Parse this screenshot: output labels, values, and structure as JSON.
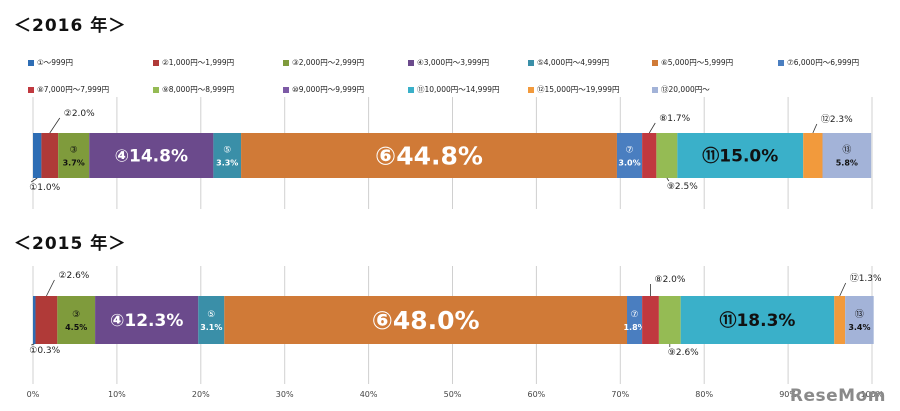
{
  "chart_data": [
    {
      "type": "bar",
      "orientation": "horizontal-stacked-100",
      "title": "＜2016 年＞",
      "categories": [
        "2016"
      ],
      "series": [
        {
          "index_label": "①",
          "name": "①～999円",
          "value": 1.0,
          "label": "①1.0%",
          "color": "#2e6db4"
        },
        {
          "index_label": "②",
          "name": "②1,000円～1,999円",
          "value": 2.0,
          "label": "②2.0%",
          "color": "#b03a38"
        },
        {
          "index_label": "③",
          "name": "③2,000円～2,999円",
          "value": 3.7,
          "label": "3.7%",
          "color": "#7f9b3c"
        },
        {
          "index_label": "④",
          "name": "④3,000円～3,999円",
          "value": 14.8,
          "label": "④14.8%",
          "color": "#6b4a8c"
        },
        {
          "index_label": "⑤",
          "name": "⑤4,000円～4,999円",
          "value": 3.3,
          "label": "3.3%",
          "color": "#3a8fa8"
        },
        {
          "index_label": "⑥",
          "name": "⑥5,000円～5,999円",
          "value": 44.8,
          "label": "⑥44.8%",
          "color": "#d07a37"
        },
        {
          "index_label": "⑦",
          "name": "⑦6,000円～6,999円",
          "value": 3.0,
          "label": "3.0%",
          "color": "#4a7ec0"
        },
        {
          "index_label": "⑧",
          "name": "⑧7,000円～7,999円",
          "value": 1.7,
          "label": "⑧1.7%",
          "color": "#c0393f"
        },
        {
          "index_label": "⑨",
          "name": "⑨8,000円～8,999円",
          "value": 2.5,
          "label": "⑨2.5%",
          "color": "#95bb54"
        },
        {
          "index_label": "⑩",
          "name": "⑩9,000円～9,999円",
          "value": 0.0,
          "label": "",
          "color": "#7d5aa6"
        },
        {
          "index_label": "⑪",
          "name": "⑪10,000円～14,999円",
          "value": 15.0,
          "label": "⑪15.0%",
          "color": "#3ab0c9"
        },
        {
          "index_label": "⑫",
          "name": "⑫15,000円～19,999円",
          "value": 2.3,
          "label": "⑫2.3%",
          "color": "#f29a3c"
        },
        {
          "index_label": "⑬",
          "name": "⑬20,000円～",
          "value": 5.8,
          "label": "5.8%",
          "color": "#a3b3d8"
        }
      ]
    },
    {
      "type": "bar",
      "orientation": "horizontal-stacked-100",
      "title": "＜2015 年＞",
      "categories": [
        "2015"
      ],
      "series": [
        {
          "index_label": "①",
          "name": "①～999円",
          "value": 0.3,
          "label": "①0.3%",
          "color": "#2e6db4"
        },
        {
          "index_label": "②",
          "name": "②1,000円～1,999円",
          "value": 2.6,
          "label": "②2.6%",
          "color": "#b03a38"
        },
        {
          "index_label": "③",
          "name": "③2,000円～2,999円",
          "value": 4.5,
          "label": "4.5%",
          "color": "#7f9b3c"
        },
        {
          "index_label": "④",
          "name": "④3,000円～3,999円",
          "value": 12.3,
          "label": "④12.3%",
          "color": "#6b4a8c"
        },
        {
          "index_label": "⑤",
          "name": "⑤4,000円～4,999円",
          "value": 3.1,
          "label": "3.1%",
          "color": "#3a8fa8"
        },
        {
          "index_label": "⑥",
          "name": "⑥5,000円～5,999円",
          "value": 48.0,
          "label": "⑥48.0%",
          "color": "#d07a37"
        },
        {
          "index_label": "⑦",
          "name": "⑦6,000円～6,999円",
          "value": 1.8,
          "label": "1.8%",
          "color": "#4a7ec0"
        },
        {
          "index_label": "⑧",
          "name": "⑧7,000円～7,999円",
          "value": 2.0,
          "label": "⑧2.0%",
          "color": "#c0393f"
        },
        {
          "index_label": "⑨",
          "name": "⑨8,000円～8,999円",
          "value": 2.6,
          "label": "⑨2.6%",
          "color": "#95bb54"
        },
        {
          "index_label": "⑩",
          "name": "⑩9,000円～9,999円",
          "value": 0.0,
          "label": "",
          "color": "#7d5aa6"
        },
        {
          "index_label": "⑪",
          "name": "⑪10,000円～14,999円",
          "value": 18.3,
          "label": "⑪18.3%",
          "color": "#3ab0c9"
        },
        {
          "index_label": "⑫",
          "name": "⑫15,000円～19,999円",
          "value": 1.3,
          "label": "⑫1.3%",
          "color": "#f29a3c"
        },
        {
          "index_label": "⑬",
          "name": "⑬20,000円～",
          "value": 3.4,
          "label": "3.4%",
          "color": "#a3b3d8"
        }
      ]
    }
  ],
  "legend": [
    {
      "label": "①～999円",
      "color": "#2e6db4"
    },
    {
      "label": "②1,000円～1,999円",
      "color": "#b03a38"
    },
    {
      "label": "③2,000円～2,999円",
      "color": "#7f9b3c"
    },
    {
      "label": "④3,000円～3,999円",
      "color": "#6b4a8c"
    },
    {
      "label": "⑤4,000円～4,999円",
      "color": "#3a8fa8"
    },
    {
      "label": "⑥5,000円～5,999円",
      "color": "#d07a37"
    },
    {
      "label": "⑦6,000円～6,999円",
      "color": "#4a7ec0"
    },
    {
      "label": "⑧7,000円～7,999円",
      "color": "#c0393f"
    },
    {
      "label": "⑨8,000円～8,999円",
      "color": "#95bb54"
    },
    {
      "label": "⑩9,000円～9,999円",
      "color": "#7d5aa6"
    },
    {
      "label": "⑪10,000円～14,999円",
      "color": "#3ab0c9"
    },
    {
      "label": "⑫15,000円～19,999円",
      "color": "#f29a3c"
    },
    {
      "label": "⑬20,000円～",
      "color": "#a3b3d8"
    }
  ],
  "x_axis": {
    "ticks": [
      "0%",
      "10%",
      "20%",
      "30%",
      "40%",
      "50%",
      "60%",
      "70%",
      "80%",
      "90%",
      "100%"
    ],
    "range": [
      0,
      100
    ]
  },
  "grid": true,
  "watermark": "ReseMom"
}
